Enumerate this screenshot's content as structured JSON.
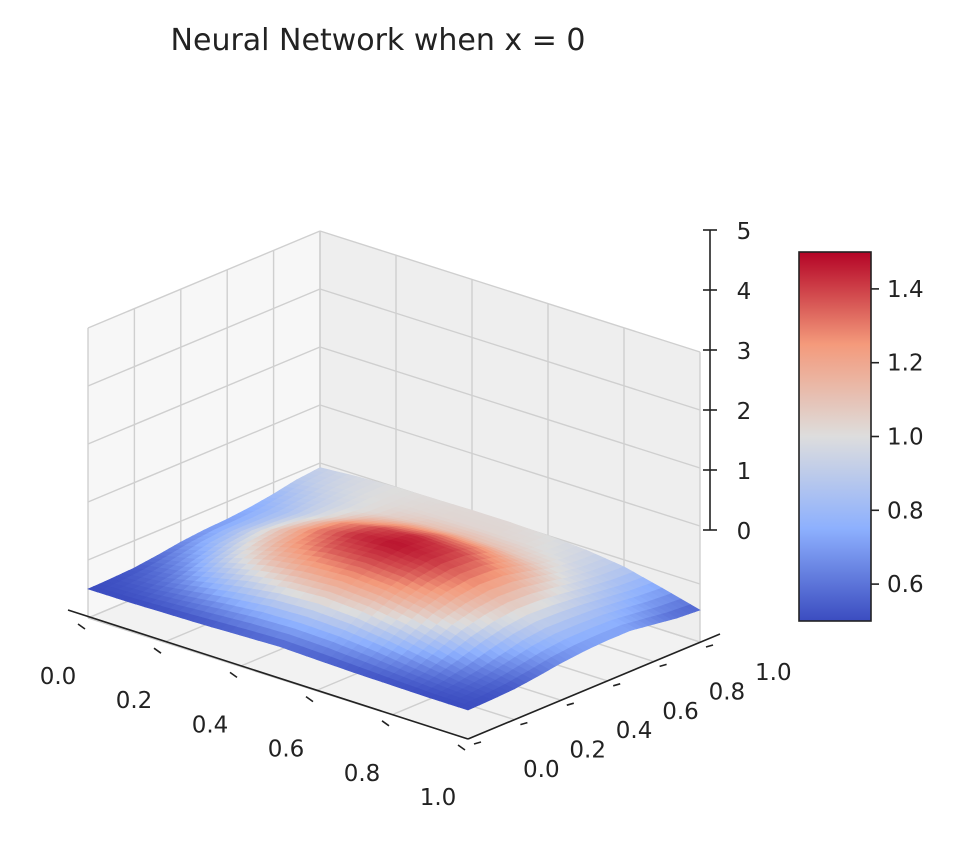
{
  "chart_data": {
    "type": "surface3d",
    "title": "Neural Network when x = 0",
    "xlabel": "",
    "ylabel": "",
    "zlabel": "",
    "xlim": [
      0,
      1
    ],
    "ylim": [
      0,
      1
    ],
    "zlim": [
      0,
      5
    ],
    "x_ticks": [
      "0.0",
      "0.2",
      "0.4",
      "0.6",
      "0.8",
      "1.0"
    ],
    "y_ticks": [
      "0.0",
      "0.2",
      "0.4",
      "0.6",
      "0.8",
      "1.0"
    ],
    "z_ticks": [
      "0",
      "1",
      "2",
      "3",
      "4",
      "5"
    ],
    "grid": true,
    "colormap": "coolwarm",
    "colorbar": {
      "placement": "right",
      "min": 0.5,
      "max": 1.5,
      "ticks": [
        "0.6",
        "0.8",
        "1.0",
        "1.2",
        "1.4"
      ]
    },
    "surface": {
      "x": [
        0,
        0.1,
        0.2,
        0.3,
        0.4,
        0.5,
        0.6,
        0.7,
        0.8,
        0.9,
        1.0
      ],
      "y": [
        0,
        0.1,
        0.2,
        0.3,
        0.4,
        0.5,
        0.6,
        0.7,
        0.8,
        0.9,
        1.0
      ],
      "z": [
        [
          0.5,
          0.5,
          0.51,
          0.52,
          0.54,
          0.56,
          0.54,
          0.52,
          0.51,
          0.5,
          0.5
        ],
        [
          0.51,
          0.55,
          0.62,
          0.7,
          0.76,
          0.78,
          0.76,
          0.7,
          0.62,
          0.55,
          0.51
        ],
        [
          0.53,
          0.62,
          0.78,
          0.92,
          1.02,
          1.06,
          1.02,
          0.92,
          0.78,
          0.62,
          0.53
        ],
        [
          0.58,
          0.72,
          0.95,
          1.12,
          1.22,
          1.26,
          1.22,
          1.12,
          0.95,
          0.72,
          0.58
        ],
        [
          0.64,
          0.82,
          1.05,
          1.24,
          1.36,
          1.4,
          1.36,
          1.24,
          1.05,
          0.82,
          0.64
        ],
        [
          0.68,
          0.87,
          1.1,
          1.3,
          1.43,
          1.48,
          1.43,
          1.3,
          1.1,
          0.87,
          0.68
        ],
        [
          0.7,
          0.86,
          1.06,
          1.26,
          1.38,
          1.44,
          1.4,
          1.28,
          1.08,
          0.86,
          0.7
        ],
        [
          0.74,
          0.85,
          1.0,
          1.15,
          1.25,
          1.3,
          1.28,
          1.18,
          1.02,
          0.84,
          0.7
        ],
        [
          0.8,
          0.9,
          0.98,
          1.05,
          1.1,
          1.12,
          1.1,
          1.05,
          0.95,
          0.8,
          0.64
        ],
        [
          0.88,
          0.95,
          1.0,
          1.02,
          1.03,
          1.03,
          1.02,
          0.98,
          0.9,
          0.75,
          0.58
        ],
        [
          0.92,
          0.97,
          1.0,
          1.01,
          1.02,
          1.02,
          1.0,
          0.96,
          0.88,
          0.72,
          0.55
        ]
      ]
    }
  }
}
